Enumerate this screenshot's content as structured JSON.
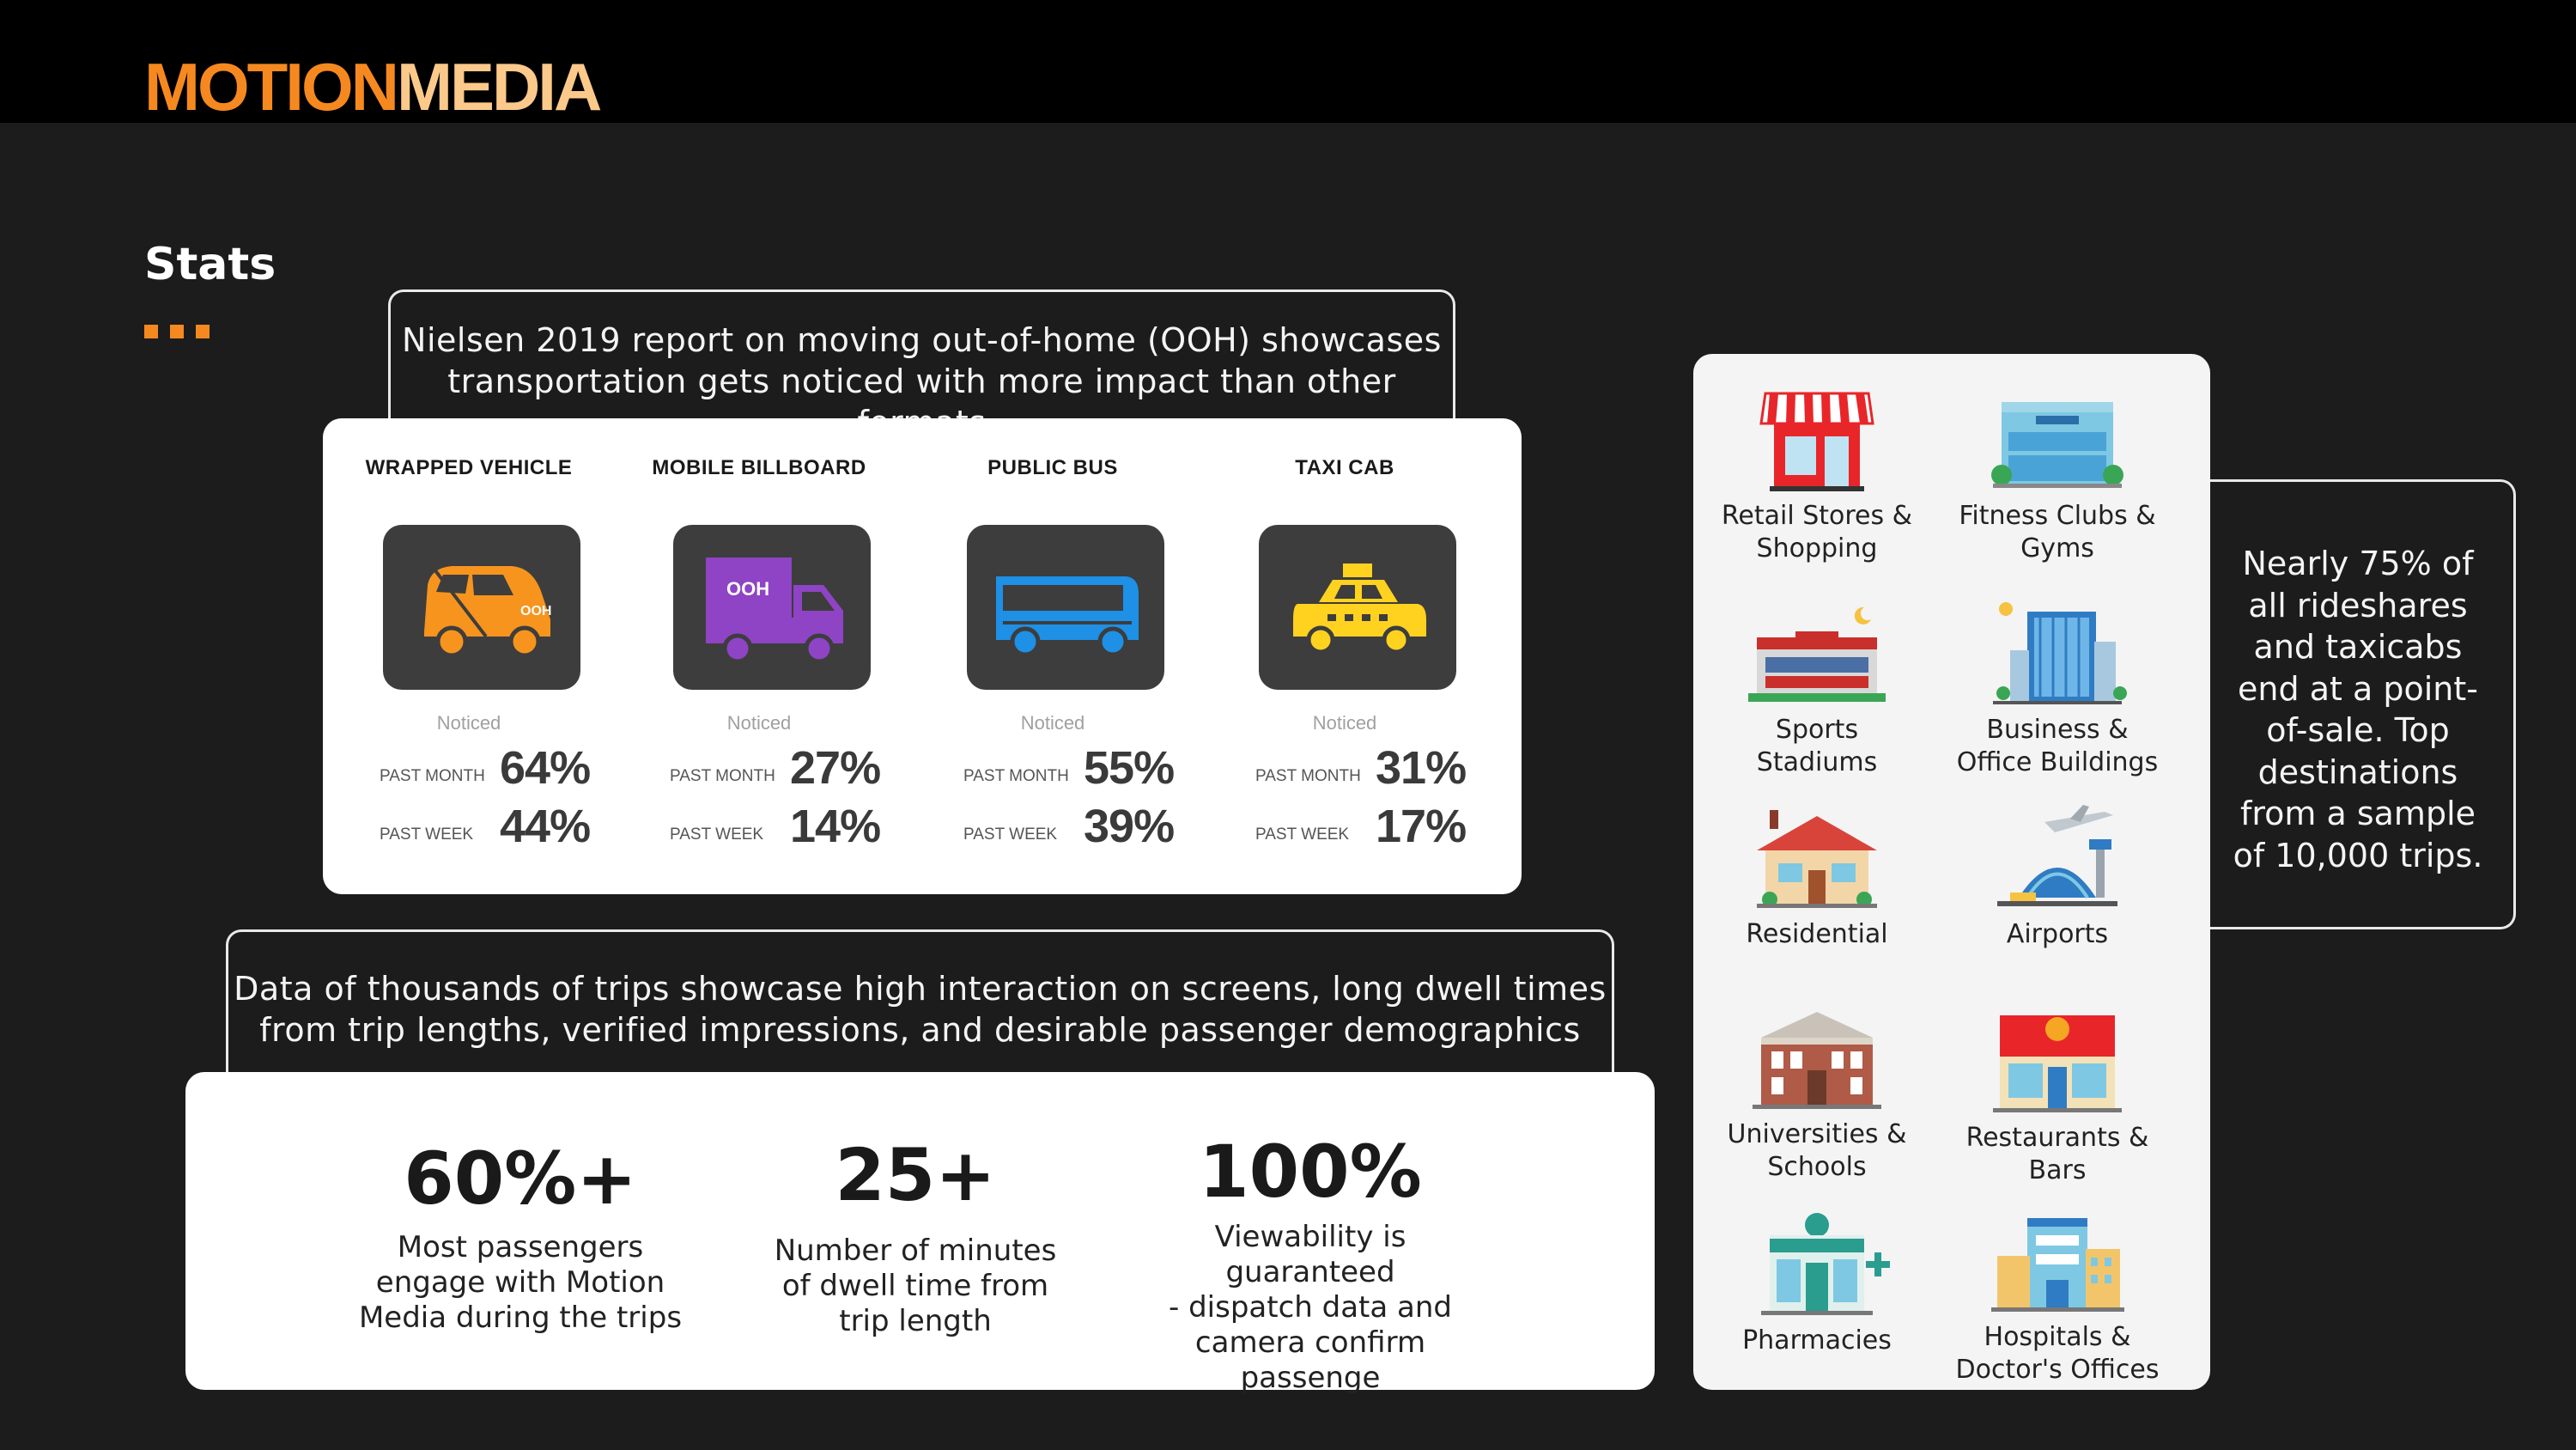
{
  "brand": {
    "part1": "MOTION",
    "part2": "MEDIA",
    "orange": "#f5891f",
    "light_orange": "#fbc98a"
  },
  "section_title": "Stats",
  "nielsen": {
    "callout_line1": "Nielsen 2019 report on moving out-of-home (OOH) showcases",
    "callout_line2": "transportation gets noticed with more impact than other formats",
    "noticed_label": "Noticed",
    "past_month_label": "PAST MONTH",
    "past_week_label": "PAST WEEK",
    "modes": [
      {
        "name": "WRAPPED VEHICLE",
        "icon": "wrapped-vehicle-icon",
        "color": "#f7941d",
        "past_month": "64%",
        "past_week": "44%"
      },
      {
        "name": "MOBILE BILLBOARD",
        "icon": "mobile-billboard-truck-icon",
        "color": "#8e44c4",
        "past_month": "27%",
        "past_week": "14%"
      },
      {
        "name": "PUBLIC BUS",
        "icon": "bus-icon",
        "color": "#1e90e6",
        "past_month": "55%",
        "past_week": "39%"
      },
      {
        "name": "TAXI CAB",
        "icon": "taxi-icon",
        "color": "#ffd21f",
        "past_month": "31%",
        "past_week": "17%"
      }
    ]
  },
  "trips": {
    "callout_line1": "Data of thousands of trips showcase high interaction on screens, long dwell times",
    "callout_line2": "from trip lengths, verified impressions, and desirable passenger demographics",
    "metrics": [
      {
        "big": "60%+",
        "line1": "Most passengers",
        "line2": "engage with Motion",
        "line3": "Media during the trips"
      },
      {
        "big": "25+",
        "line1": "Number of minutes",
        "line2": "of dwell time from",
        "line3": "trip length"
      },
      {
        "big": "100%",
        "line1": "Viewability is guaranteed",
        "line2": "- dispatch data and",
        "line3": "camera confirm passenge"
      }
    ]
  },
  "destinations": [
    {
      "line1": "Retail Stores &",
      "line2": "Shopping",
      "icon": "retail-store-icon"
    },
    {
      "line1": "Fitness Clubs &",
      "line2": "Gyms",
      "icon": "fitness-center-icon"
    },
    {
      "line1": "Sports",
      "line2": "Stadiums",
      "icon": "stadium-icon"
    },
    {
      "line1": "Business &",
      "line2": "Office Buildings",
      "icon": "office-building-icon"
    },
    {
      "line1": "Residential",
      "line2": "",
      "icon": "house-icon"
    },
    {
      "line1": "Airports",
      "line2": "",
      "icon": "airport-icon"
    },
    {
      "line1": "Universities &",
      "line2": "Schools",
      "icon": "university-icon"
    },
    {
      "line1": "Restaurants &",
      "line2": "Bars",
      "icon": "restaurant-icon"
    },
    {
      "line1": "Pharmacies",
      "line2": "",
      "icon": "pharmacy-icon"
    },
    {
      "line1": "Hospitals &",
      "line2": "Doctor's Offices",
      "icon": "hospital-icon"
    }
  ],
  "side_note": {
    "line1": "Nearly 75% of",
    "line2": "all rideshares",
    "line3": "and taxicabs",
    "line4": "end at a point-",
    "line5": "of-sale. Top",
    "line6": "destinations",
    "line7": "from a sample",
    "line8": "of 10,000 trips."
  }
}
